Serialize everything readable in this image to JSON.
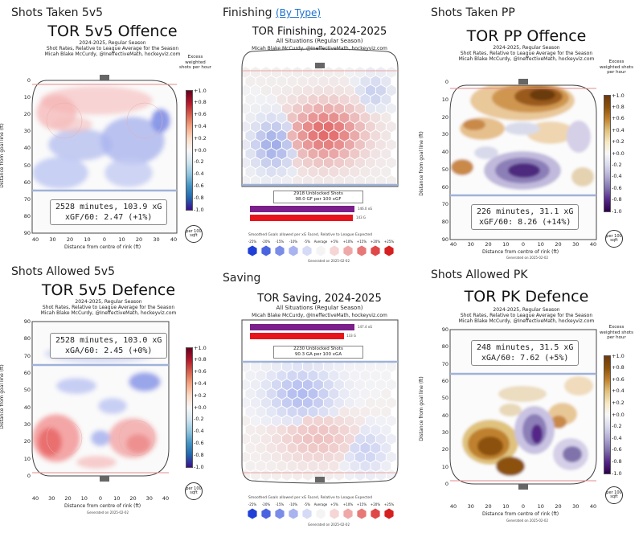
{
  "panels": {
    "off5v5": {
      "section": "Shots Taken 5v5",
      "title": "TOR 5v5 Offence",
      "season": "2024-2025, Regular Season",
      "desc": "Shot Rates, Relative to League Average for the Season",
      "credit": "Micah Blake McCurdy, @IneffectiveMath, hockeyviz.com",
      "stat1": "2528 minutes, 103.9 xG",
      "stat2": "xGF/60: 2.47 (+1%)"
    },
    "finishing": {
      "section": "Finishing",
      "link": "(By Type)",
      "title": "TOR Finishing, 2024-2025",
      "situation": "All Situations (Regular Season)",
      "credit": "Micah Blake McCurdy, @IneffectiveMath, hockeyviz.com",
      "unblocked1": "2918 Unblocked Shots",
      "unblocked2": "98.0 GF per 100 xGF",
      "bar1": "146.0 xG",
      "bar2": "143 G",
      "legend_title": "Smoothed Goals allowed per xG Faced, Relative to League Expected",
      "generated": "Generated on 2025-02-02"
    },
    "pp": {
      "section": "Shots Taken PP",
      "title": "TOR PP Offence",
      "season": "2024-2025, Regular Season",
      "desc": "Shot Rates, Relative to League Average for the Season",
      "credit": "Micah Blake McCurdy, @IneffectiveMath, hockeyviz.com",
      "stat1": "226 minutes, 31.1 xG",
      "stat2": "xGF/60: 8.26 (+14%)",
      "generated": "Generated on 2025-02-02"
    },
    "def5v5": {
      "section": "Shots Allowed 5v5",
      "title": "TOR 5v5 Defence",
      "season": "2024-2025, Regular Season",
      "desc": "Shot Rates, Relative to League Average for the Season",
      "credit": "Micah Blake McCurdy, @IneffectiveMath, hockeyviz.com",
      "stat1": "2528 minutes, 103.0 xG",
      "stat2": "xGA/60: 2.45 (+0%)",
      "generated": "Generated on 2025-02-02"
    },
    "saving": {
      "section": "Saving",
      "title": "TOR Saving, 2024-2025",
      "situation": "All Situations (Regular Season)",
      "credit": "Micah Blake McCurdy, @IneffectiveMath, hockeyviz.com",
      "bar1": "147.4 xG",
      "bar2": "133 G",
      "unblocked1": "2230 Unblocked Shots",
      "unblocked2": "90.3 GA per 100 xGA",
      "legend_title": "Smoothed Goals allowed per xG Faced, Relative to League Expected",
      "generated": "Generated on 2025-02-02"
    },
    "pk": {
      "section": "Shots Allowed PK",
      "title": "TOR PK Defence",
      "season": "2024-2025, Regular Season",
      "desc": "Shot Rates, Relative to League Average for the Season",
      "credit": "Micah Blake McCurdy, @IneffectiveMath, hockeyviz.com",
      "stat1": "248 minutes, 31.5 xG",
      "stat2": "xGA/60: 7.62 (+5%)",
      "generated": "Generated on 2025-02-02"
    }
  },
  "axis": {
    "xlabel": "Distance from centre of rink (ft)",
    "ylabel": "Distance from goal line (ft)",
    "xticks": [
      "40",
      "30",
      "20",
      "10",
      "0",
      "10",
      "20",
      "30",
      "40"
    ],
    "yticks_offence": [
      "0",
      "10",
      "20",
      "30",
      "40",
      "50",
      "60",
      "70",
      "80",
      "90"
    ],
    "yticks_defence": [
      "90",
      "80",
      "70",
      "60",
      "50",
      "40",
      "30",
      "20",
      "10",
      "0"
    ]
  },
  "colorbar": {
    "title": "Excess weighted shots per hour",
    "ticks": [
      "+1.0",
      "+0.8",
      "+0.6",
      "+0.4",
      "+0.2",
      "+0.0",
      "-0.2",
      "-0.4",
      "-0.6",
      "-0.8",
      "-1.0"
    ],
    "per_unit": "per 100 sqft",
    "colors_5v5": [
      "#67001f",
      "#b2182b",
      "#d6604d",
      "#f4a582",
      "#fddbc7",
      "#f7f7f7",
      "#d1e5f0",
      "#92c5de",
      "#4393c3",
      "#2166ac",
      "#3b0f8f"
    ],
    "colors_special": [
      "#6b3a0f",
      "#8c510a",
      "#bf812d",
      "#dfc27d",
      "#f6e8c3",
      "#f7f7f7",
      "#d8daeb",
      "#b2abd2",
      "#8073ac",
      "#542788",
      "#2d004b"
    ]
  },
  "finish_legend": {
    "labels": [
      "-25%",
      "-20%",
      "-15%",
      "-10%",
      "-5%",
      "Average",
      "+5%",
      "+10%",
      "+15%",
      "+20%",
      "+25%"
    ],
    "colors": [
      "#1f3fd6",
      "#4a64e0",
      "#7a8ce8",
      "#a8b3ef",
      "#d5daf6",
      "#f4f4f4",
      "#f6d5d5",
      "#efa8a8",
      "#e87878",
      "#e04848",
      "#d61f1f"
    ]
  },
  "chart_data": [
    {
      "type": "heatmap",
      "title": "TOR 5v5 Offence",
      "xlabel": "Distance from centre of rink (ft)",
      "ylabel": "Distance from goal line (ft)",
      "xlim": [
        -40,
        40
      ],
      "ylim": [
        0,
        90
      ],
      "colorbar_range": [
        -1.0,
        1.0
      ]
    },
    {
      "type": "heatmap",
      "title": "TOR Finishing, 2024-2025",
      "bars": [
        {
          "label": "146.0 xG",
          "value": 146.0
        },
        {
          "label": "143 G",
          "value": 143
        }
      ]
    },
    {
      "type": "heatmap",
      "title": "TOR PP Offence",
      "xlabel": "Distance from centre of rink (ft)",
      "ylabel": "Distance from goal line (ft)",
      "xlim": [
        -40,
        40
      ],
      "ylim": [
        0,
        90
      ],
      "colorbar_range": [
        -1.0,
        1.0
      ]
    },
    {
      "type": "heatmap",
      "title": "TOR 5v5 Defence",
      "xlabel": "Distance from centre of rink (ft)",
      "ylabel": "Distance from goal line (ft)",
      "xlim": [
        -40,
        40
      ],
      "ylim": [
        0,
        90
      ],
      "colorbar_range": [
        -1.0,
        1.0
      ]
    },
    {
      "type": "heatmap",
      "title": "TOR Saving, 2024-2025",
      "bars": [
        {
          "label": "147.4 xG",
          "value": 147.4
        },
        {
          "label": "133 G",
          "value": 133
        }
      ]
    },
    {
      "type": "heatmap",
      "title": "TOR PK Defence",
      "xlabel": "Distance from centre of rink (ft)",
      "ylabel": "Distance from goal line (ft)",
      "xlim": [
        -40,
        40
      ],
      "ylim": [
        0,
        90
      ],
      "colorbar_range": [
        -1.0,
        1.0
      ]
    }
  ]
}
